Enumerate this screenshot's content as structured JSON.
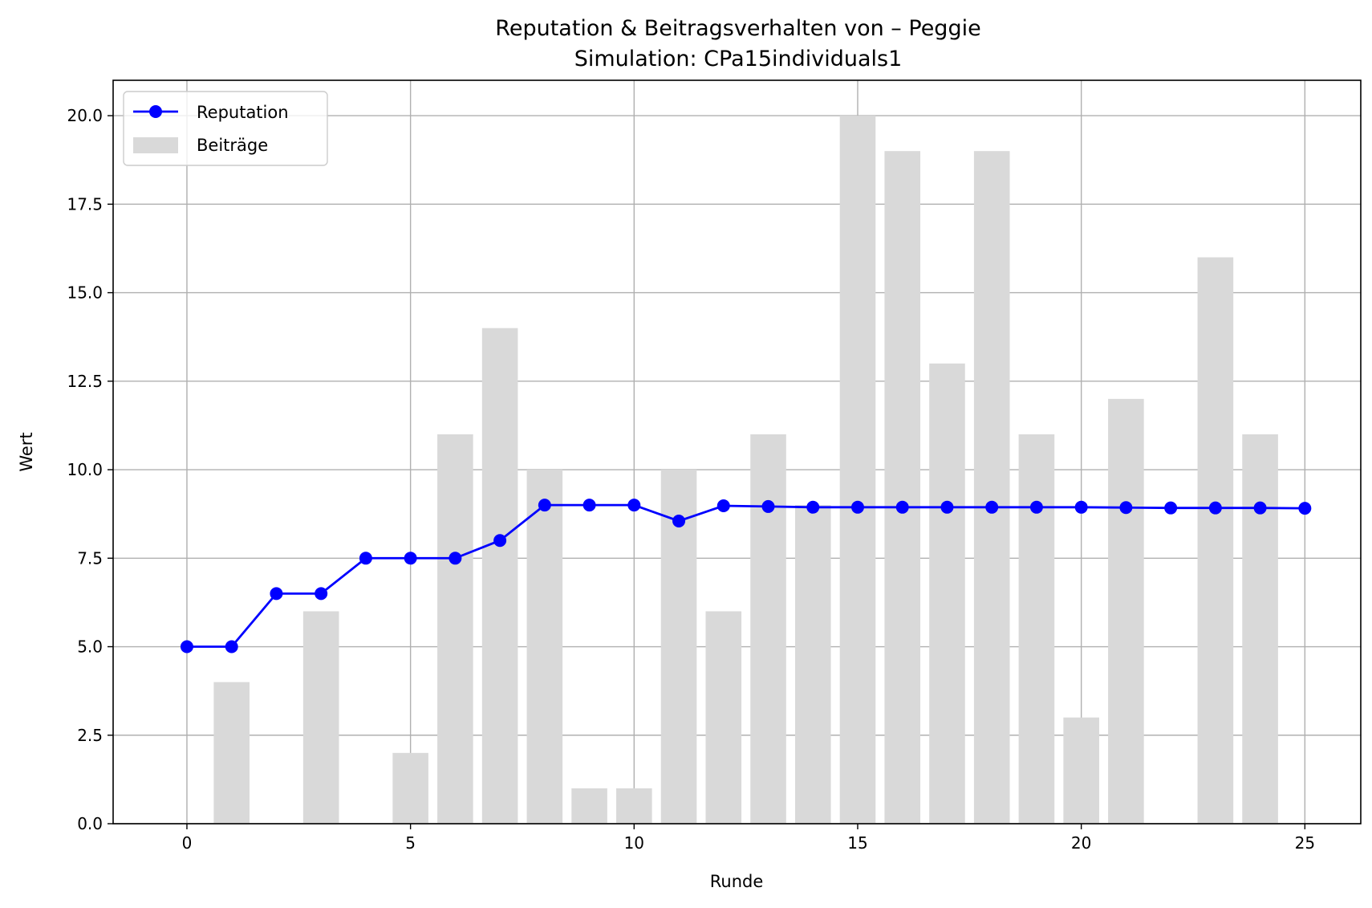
{
  "chart_data": {
    "type": "bar+line",
    "title": "Reputation & Beitragsverhalten von – Peggie",
    "subtitle": "Simulation: CPa15individuals1",
    "xlabel": "Runde",
    "ylabel": "Wert",
    "xlim": [
      -1.65,
      26.25
    ],
    "ylim": [
      0,
      21
    ],
    "xticks": [
      0,
      5,
      10,
      15,
      20,
      25
    ],
    "yticks": [
      0.0,
      2.5,
      5.0,
      7.5,
      10.0,
      12.5,
      15.0,
      17.5,
      20.0
    ],
    "grid": true,
    "legend_position": "top-left",
    "colors": {
      "reputation": "#0000ff",
      "contributions": "#d9d9d9"
    },
    "series": [
      {
        "name": "Reputation",
        "kind": "line",
        "x": [
          0,
          1,
          2,
          3,
          4,
          5,
          6,
          7,
          8,
          9,
          10,
          11,
          12,
          13,
          14,
          15,
          16,
          17,
          18,
          19,
          20,
          21,
          22,
          23,
          24,
          25
        ],
        "values": [
          5.0,
          5.0,
          6.5,
          6.5,
          7.5,
          7.5,
          7.5,
          8.0,
          9.0,
          9.0,
          9.0,
          8.55,
          8.98,
          8.96,
          8.94,
          8.94,
          8.94,
          8.94,
          8.94,
          8.94,
          8.94,
          8.93,
          8.92,
          8.92,
          8.92,
          8.91
        ]
      },
      {
        "name": "Beiträge",
        "kind": "bar",
        "x": [
          0,
          1,
          2,
          3,
          4,
          5,
          6,
          7,
          8,
          9,
          10,
          11,
          12,
          13,
          14,
          15,
          16,
          17,
          18,
          19,
          20,
          21,
          22,
          23,
          24,
          25
        ],
        "values": [
          0,
          4,
          0,
          6,
          0,
          2,
          11,
          14,
          10,
          1,
          1,
          10,
          6,
          11,
          9,
          20,
          19,
          13,
          19,
          11,
          3,
          12,
          0,
          16,
          11,
          0
        ]
      }
    ]
  }
}
